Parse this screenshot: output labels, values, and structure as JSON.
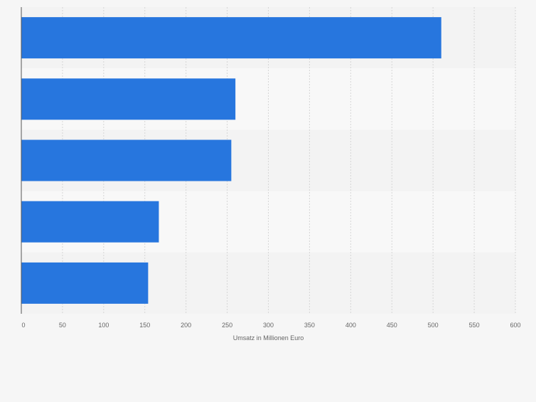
{
  "chart_data": {
    "type": "bar",
    "orientation": "horizontal",
    "categories": [
      "",
      "",
      "",
      "",
      ""
    ],
    "values": [
      510,
      260,
      255,
      167,
      154
    ],
    "title": "",
    "xlabel": "Umsatz in Millionen Euro",
    "ylabel": "",
    "xlim": [
      0,
      600
    ],
    "xticks": [
      0,
      50,
      100,
      150,
      200,
      250,
      300,
      350,
      400,
      450,
      500,
      550,
      600
    ],
    "grid": "vertical",
    "legend": "none",
    "colors": {
      "bar": "#2776de",
      "band_dark": "#f3f3f3",
      "band_light": "#f8f8f8",
      "grid": "#d6d6d6",
      "axis": "#555555",
      "tick_text": "#666666",
      "background": "#f6f6f6"
    }
  }
}
